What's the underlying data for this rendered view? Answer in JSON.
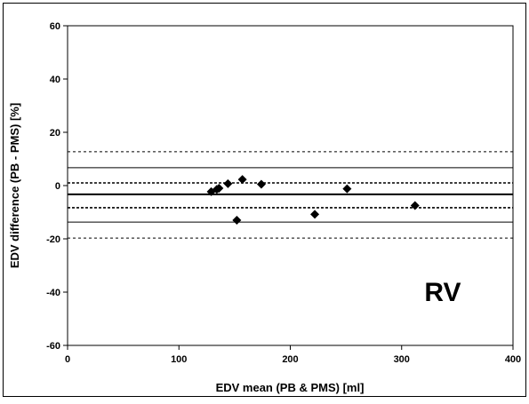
{
  "chart_data": {
    "type": "scatter",
    "xlabel": "EDV mean (PB & PMS) [ml]",
    "ylabel": "EDV difference (PB - PMS) [%]",
    "annotation": "RV",
    "xlim": [
      0,
      400
    ],
    "ylim": [
      -60,
      60
    ],
    "x_ticks": [
      0,
      100,
      200,
      300,
      400
    ],
    "y_ticks": [
      -60,
      -40,
      -20,
      0,
      20,
      40,
      60
    ],
    "x_tick_labels": [
      "0",
      "100",
      "200",
      "300",
      "400"
    ],
    "y_tick_labels": [
      "-60",
      "-40",
      "-20",
      "0",
      "20",
      "40",
      "60"
    ],
    "grid": false,
    "marker": "diamond",
    "points": [
      {
        "x": 129,
        "y": -2.3
      },
      {
        "x": 134,
        "y": -1.4
      },
      {
        "x": 136,
        "y": -1.0
      },
      {
        "x": 144,
        "y": 0.7
      },
      {
        "x": 152,
        "y": -13.0
      },
      {
        "x": 157,
        "y": 2.3
      },
      {
        "x": 174,
        "y": 0.5
      },
      {
        "x": 222,
        "y": -10.8
      },
      {
        "x": 251,
        "y": -1.2
      },
      {
        "x": 312,
        "y": -7.5
      }
    ],
    "reference_lines": [
      {
        "y": 12.7,
        "style": "dotted",
        "weight": "thin"
      },
      {
        "y": 6.7,
        "style": "solid",
        "weight": "thin"
      },
      {
        "y": 1.0,
        "style": "dotted",
        "weight": "thick"
      },
      {
        "y": -3.3,
        "style": "solid",
        "weight": "thick"
      },
      {
        "y": -8.3,
        "style": "dotted",
        "weight": "thick"
      },
      {
        "y": -13.7,
        "style": "solid",
        "weight": "thin"
      },
      {
        "y": -19.7,
        "style": "dotted",
        "weight": "thin"
      }
    ],
    "colors": {
      "marker": "#000000",
      "lines": "#000000",
      "background": "#ffffff"
    }
  }
}
